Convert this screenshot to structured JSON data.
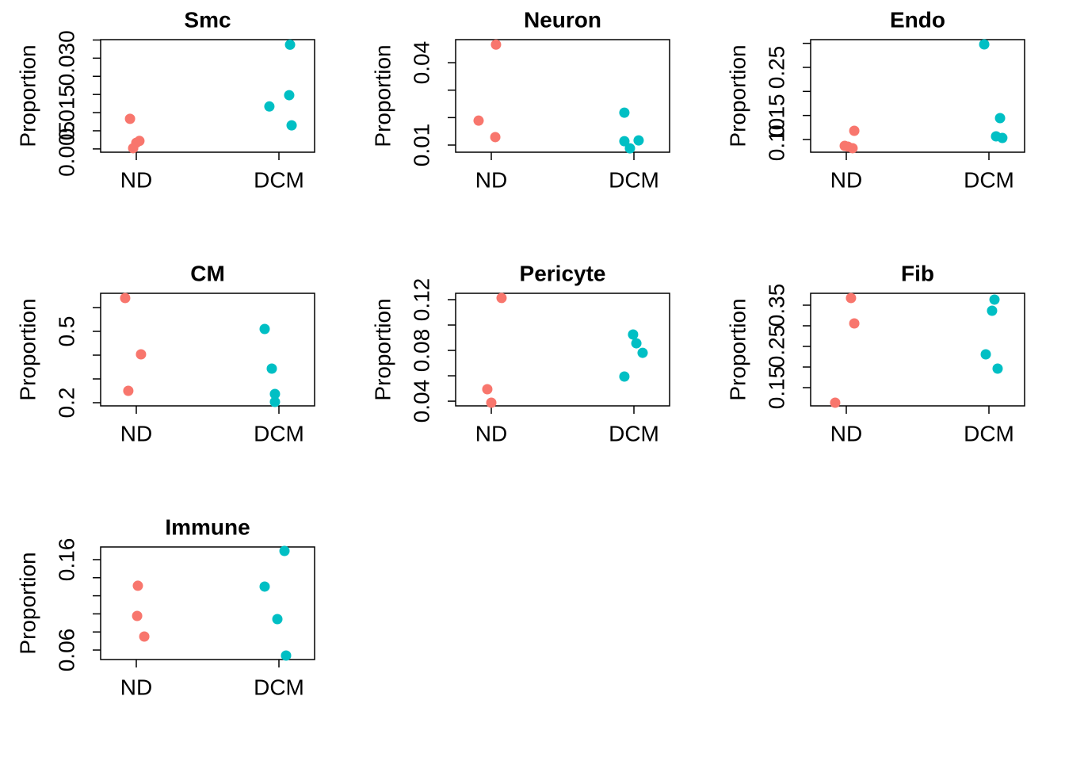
{
  "chart_data": [
    {
      "type": "scatter",
      "title": "Smc",
      "ylabel": "Proportion",
      "xlim": [
        0.75,
        2.25
      ],
      "xticks": [
        {
          "value": 1,
          "label": "ND"
        },
        {
          "value": 2,
          "label": "DCM"
        }
      ],
      "ylim": [
        0.0041,
        0.0351
      ],
      "yticks": [
        0.005,
        0.015,
        {
          "value": 0.03,
          "label": "0.030"
        }
      ],
      "yminorticks": [
        0.01,
        0.02,
        0.025,
        0.035
      ],
      "series": [
        {
          "color": "#F8766D",
          "x": [
            0.956,
            1.022,
            1.0,
            0.978
          ],
          "values": [
            0.0133,
            0.0072,
            0.0067,
            0.0052
          ]
        },
        {
          "color": "#00BFC4",
          "x": [
            1.933,
            2.078,
            2.072,
            2.089
          ],
          "values": [
            0.0167,
            0.0337,
            0.0198,
            0.0115
          ]
        }
      ]
    },
    {
      "type": "scatter",
      "title": "Neuron",
      "ylabel": "Proportion",
      "xlim": [
        0.75,
        2.25
      ],
      "xticks": [
        {
          "value": 1,
          "label": "ND"
        },
        {
          "value": 2,
          "label": "DCM"
        }
      ],
      "ylim": [
        0.0074,
        0.0484
      ],
      "yticks": [
        0.01,
        0.04
      ],
      "yminorticks": [
        0.02,
        0.03
      ],
      "series": [
        {
          "color": "#F8766D",
          "x": [
            0.911,
            1.033,
            1.028
          ],
          "values": [
            0.0189,
            0.0466,
            0.0129
          ]
        },
        {
          "color": "#00BFC4",
          "x": [
            1.933,
            1.933,
            1.972,
            2.033
          ],
          "values": [
            0.0218,
            0.0114,
            0.0088,
            0.0117
          ]
        }
      ]
    },
    {
      "type": "scatter",
      "title": "Endo",
      "ylabel": "Proportion",
      "xlim": [
        0.75,
        2.25
      ],
      "xticks": [
        {
          "value": 1,
          "label": "ND"
        },
        {
          "value": 2,
          "label": "DCM"
        }
      ],
      "ylim": [
        0.0736,
        0.3077
      ],
      "yticks": [
        {
          "value": 0.1,
          "label": "0.10"
        },
        0.15,
        0.25
      ],
      "yminorticks": [
        0.2,
        0.3
      ],
      "series": [
        {
          "color": "#F8766D",
          "x": [
            0.989,
            1.044,
            1.056,
            1.011
          ],
          "values": [
            0.0868,
            0.0819,
            0.1181,
            0.0852
          ]
        },
        {
          "color": "#00BFC4",
          "x": [
            1.967,
            2.078,
            2.05,
            2.094
          ],
          "values": [
            0.2978,
            0.1445,
            0.1066,
            0.1033
          ]
        }
      ]
    },
    {
      "type": "scatter",
      "title": "CM",
      "ylabel": "Proportion",
      "xlim": [
        0.75,
        2.25
      ],
      "xticks": [
        {
          "value": 1,
          "label": "ND"
        },
        {
          "value": 2,
          "label": "DCM"
        }
      ],
      "ylim": [
        0.1867,
        0.66
      ],
      "yticks": [
        0.2,
        0.5
      ],
      "yminorticks": [
        0.3,
        0.4,
        0.6
      ],
      "series": [
        {
          "color": "#F8766D",
          "x": [
            0.922,
            1.033,
            0.944
          ],
          "values": [
            0.64,
            0.4033,
            0.25
          ]
        },
        {
          "color": "#00BFC4",
          "x": [
            1.9,
            1.95,
            1.972,
            1.972
          ],
          "values": [
            0.51,
            0.3433,
            0.2367,
            0.2033
          ]
        }
      ]
    },
    {
      "type": "scatter",
      "title": "Pericyte",
      "ylabel": "Proportion",
      "xlim": [
        0.75,
        2.25
      ],
      "xticks": [
        {
          "value": 1,
          "label": "ND"
        },
        {
          "value": 2,
          "label": "DCM"
        }
      ],
      "ylim": [
        0.0363,
        0.125
      ],
      "yticks": [
        0.04,
        0.08,
        0.12
      ],
      "yminorticks": [
        0.06,
        0.1
      ],
      "series": [
        {
          "color": "#F8766D",
          "x": [
            1.072,
            0.972,
            1.0
          ],
          "values": [
            0.1213,
            0.0494,
            0.0388
          ]
        },
        {
          "color": "#00BFC4",
          "x": [
            1.994,
            2.017,
            2.061,
            1.933
          ],
          "values": [
            0.0925,
            0.0856,
            0.0781,
            0.0594
          ]
        }
      ]
    },
    {
      "type": "scatter",
      "title": "Fib",
      "ylabel": "Proportion",
      "xlim": [
        0.75,
        2.25
      ],
      "xticks": [
        {
          "value": 1,
          "label": "ND"
        },
        {
          "value": 2,
          "label": "DCM"
        }
      ],
      "ylim": [
        0.1058,
        0.3788
      ],
      "yticks": [
        0.15,
        0.25,
        0.35
      ],
      "yminorticks": [
        0.2,
        0.3
      ],
      "series": [
        {
          "color": "#F8766D",
          "x": [
            1.033,
            1.056,
            0.922
          ],
          "values": [
            0.3673,
            0.3058,
            0.1135
          ]
        },
        {
          "color": "#00BFC4",
          "x": [
            2.039,
            2.022,
            1.978,
            2.061
          ],
          "values": [
            0.3635,
            0.3365,
            0.2308,
            0.1962
          ]
        }
      ]
    },
    {
      "type": "scatter",
      "title": "Immune",
      "ylabel": "Proportion",
      "xlim": [
        0.75,
        2.25
      ],
      "xticks": [
        {
          "value": 1,
          "label": "ND"
        },
        {
          "value": 2,
          "label": "DCM"
        }
      ],
      "ylim": [
        0.0495,
        0.174
      ],
      "yticks": [
        0.06,
        0.16
      ],
      "yminorticks": [
        0.08,
        0.1,
        0.12,
        0.14
      ],
      "series": [
        {
          "color": "#F8766D",
          "x": [
            1.011,
            1.006,
            1.056
          ],
          "values": [
            0.1311,
            0.0977,
            0.0749
          ]
        },
        {
          "color": "#00BFC4",
          "x": [
            1.9,
            2.039,
            1.989,
            2.05
          ],
          "values": [
            0.1302,
            0.1696,
            0.0942,
            0.0539
          ]
        }
      ]
    }
  ]
}
